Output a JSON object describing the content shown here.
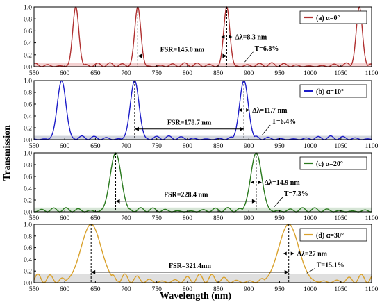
{
  "figure": {
    "ylabel": "Transmission",
    "xlabel": "Wavelength (nm)"
  },
  "chart_data": [
    {
      "type": "line",
      "panel_label": "(a) α=0°",
      "color": "#b03030",
      "fill_color": "#f2c9c9",
      "xlim": [
        550,
        1100
      ],
      "ylim": [
        0,
        1.0
      ],
      "x_ticks": [
        550,
        600,
        650,
        700,
        750,
        800,
        850,
        900,
        950,
        1000,
        1050,
        1100
      ],
      "y_ticks": [
        0.0,
        0.2,
        0.4,
        0.6,
        0.8,
        1.0
      ],
      "legend_position": "top-right",
      "peaks": [
        {
          "x": 618,
          "y": 1.0
        },
        {
          "x": 719,
          "y": 1.0
        },
        {
          "x": 864,
          "y": 1.0
        },
        {
          "x": 1080,
          "y": 1.0
        }
      ],
      "peak_width_nm": 8.3,
      "transmission_floor": 0.068,
      "fsr": {
        "from": 719,
        "to": 864,
        "label": "FSR=145.0 nm"
      },
      "dashed_lines": [
        719,
        864
      ],
      "width_annotation": "Δλ=8.3 nm",
      "floor_annotation": "T=6.8%"
    },
    {
      "type": "line",
      "panel_label": "(b) α=10°",
      "color": "#1c1cc8",
      "fill_color": "#c9cdd6",
      "xlim": [
        550,
        1100
      ],
      "ylim": [
        0,
        1.0
      ],
      "x_ticks": [
        550,
        600,
        650,
        700,
        750,
        800,
        850,
        900,
        950,
        1000,
        1050,
        1100
      ],
      "y_ticks": [
        0.0,
        0.2,
        0.4,
        0.6,
        0.8,
        1.0
      ],
      "legend_position": "top-right",
      "peaks": [
        {
          "x": 595,
          "y": 1.0
        },
        {
          "x": 714,
          "y": 1.0
        },
        {
          "x": 892,
          "y": 1.0
        }
      ],
      "peak_width_nm": 11.7,
      "transmission_floor": 0.064,
      "fsr": {
        "from": 714,
        "to": 892,
        "label": "FSR=178.7 nm"
      },
      "dashed_lines": [
        714,
        892
      ],
      "width_annotation": "Δλ=11.7 nm",
      "floor_annotation": "T=6.4%"
    },
    {
      "type": "line",
      "panel_label": "(c) α=20°",
      "color": "#2a7a1e",
      "fill_color": "#cfe0cf",
      "xlim": [
        550,
        1100
      ],
      "ylim": [
        0,
        1.0
      ],
      "x_ticks": [
        550,
        600,
        650,
        700,
        750,
        800,
        850,
        900,
        950,
        1000,
        1050,
        1100
      ],
      "y_ticks": [
        0.0,
        0.2,
        0.4,
        0.6,
        0.8,
        1.0
      ],
      "legend_position": "top-right",
      "peaks": [
        {
          "x": 683,
          "y": 1.0
        },
        {
          "x": 912,
          "y": 1.0
        }
      ],
      "peak_width_nm": 14.9,
      "transmission_floor": 0.073,
      "fsr": {
        "from": 683,
        "to": 912,
        "label": "FSR=228.4 nm"
      },
      "dashed_lines": [
        683,
        912
      ],
      "width_annotation": "Δλ=14.9 nm",
      "floor_annotation": "T=7.3%"
    },
    {
      "type": "line",
      "panel_label": "(d) α=30°",
      "color": "#d9a12c",
      "fill_color": "#d9d9d9",
      "xlim": [
        550,
        1100
      ],
      "ylim": [
        0,
        1.0
      ],
      "x_ticks": [
        550,
        600,
        650,
        700,
        750,
        800,
        850,
        900,
        950,
        1000,
        1050,
        1100
      ],
      "y_ticks": [
        0.0,
        0.2,
        0.4,
        0.6,
        0.8,
        1.0
      ],
      "legend_position": "top-right",
      "peaks": [
        {
          "x": 643,
          "y": 1.0
        },
        {
          "x": 965,
          "y": 1.0
        }
      ],
      "peak_width_nm": 27,
      "transmission_floor": 0.151,
      "fsr": {
        "from": 643,
        "to": 965,
        "label": "FSR=321.4nm"
      },
      "dashed_lines": [
        643,
        965
      ],
      "width_annotation": "Δλ=27 nm",
      "floor_annotation": "T=15.1%"
    }
  ]
}
